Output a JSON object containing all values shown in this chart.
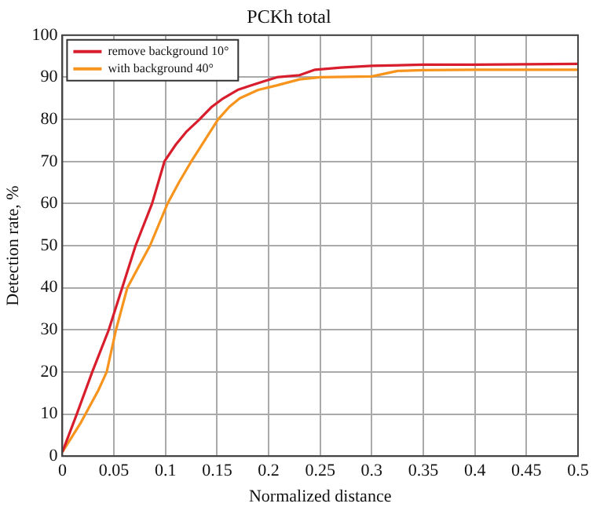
{
  "chart_data": {
    "type": "line",
    "title": "PCKh total",
    "xlabel": "Normalized distance",
    "ylabel": "Detection rate, %",
    "xlim": [
      0,
      0.5
    ],
    "xticks": [
      0,
      0.05,
      0.1,
      0.15,
      0.2,
      0.25,
      0.3,
      0.35,
      0.4,
      0.45,
      0.5
    ],
    "ylim": [
      0,
      100
    ],
    "yticks": [
      0,
      10,
      20,
      30,
      40,
      50,
      60,
      70,
      80,
      90,
      100
    ],
    "grid": true,
    "legend": "top left",
    "marker": "none",
    "line_style": "solid",
    "series": [
      {
        "name": "remove background 10°",
        "color": "#d81e2c",
        "x": [
          0,
          0.014,
          0.029,
          0.045,
          0.058,
          0.071,
          0.087,
          0.099,
          0.11,
          0.12,
          0.133,
          0.145,
          0.156,
          0.17,
          0.182,
          0.195,
          0.208,
          0.23,
          0.245,
          0.27,
          0.3,
          0.35,
          0.4,
          0.45,
          0.5
        ],
        "values": [
          1,
          10,
          20,
          30,
          40,
          50,
          60,
          70,
          74,
          77,
          80,
          83,
          85,
          87,
          88,
          89,
          90,
          90.5,
          91.8,
          92.3,
          92.7,
          93,
          93,
          93.1,
          93.2
        ]
      },
      {
        "name": "with background 40°",
        "color": "#f7941d",
        "x": [
          0,
          0.018,
          0.035,
          0.043,
          0.052,
          0.063,
          0.074,
          0.085,
          0.102,
          0.113,
          0.125,
          0.138,
          0.151,
          0.162,
          0.172,
          0.19,
          0.207,
          0.23,
          0.25,
          0.3,
          0.325,
          0.35,
          0.4,
          0.45,
          0.5
        ],
        "values": [
          1,
          8,
          15.7,
          20,
          30,
          40,
          45,
          50,
          60,
          65,
          70,
          75,
          80,
          83,
          85,
          87,
          88,
          89.5,
          90,
          90.2,
          91.5,
          91.7,
          91.8,
          91.8,
          91.8
        ]
      }
    ]
  }
}
